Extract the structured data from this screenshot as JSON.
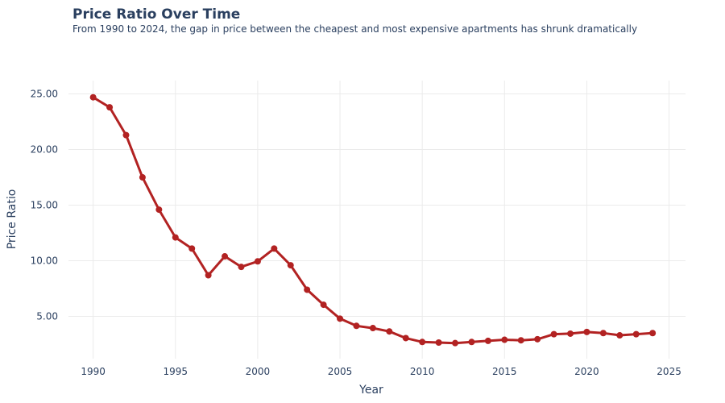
{
  "chart_data": {
    "type": "line",
    "title": "Price Ratio Over Time",
    "subtitle": "From 1990 to 2024, the gap in price between the cheapest and most expensive apartments has shrunk dramatically",
    "xlabel": "Year",
    "ylabel": "Price Ratio",
    "xlim": [
      1988.5,
      2026
    ],
    "ylim": [
      1.2,
      26.2
    ],
    "xticks": [
      1990,
      1995,
      2000,
      2005,
      2010,
      2015,
      2020,
      2025
    ],
    "yticks": [
      "5.00",
      "10.00",
      "15.00",
      "20.00",
      "25.00"
    ],
    "grid": true,
    "legend": "none",
    "series": [
      {
        "color": "#b22222",
        "x": [
          1990,
          1991,
          1992,
          1993,
          1994,
          1995,
          1996,
          1997,
          1998,
          1999,
          2000,
          2001,
          2002,
          2003,
          2004,
          2005,
          2006,
          2007,
          2008,
          2009,
          2010,
          2011,
          2012,
          2013,
          2014,
          2015,
          2016,
          2017,
          2018,
          2019,
          2020,
          2021,
          2022,
          2023,
          2024
        ],
        "y": [
          24.7,
          23.8,
          21.3,
          17.5,
          14.6,
          12.1,
          11.1,
          8.7,
          10.4,
          9.45,
          9.95,
          11.1,
          9.6,
          7.4,
          6.05,
          4.8,
          4.15,
          3.95,
          3.65,
          3.05,
          2.7,
          2.65,
          2.6,
          2.7,
          2.8,
          2.9,
          2.85,
          2.95,
          3.4,
          3.45,
          3.6,
          3.5,
          3.3,
          3.4,
          3.5
        ]
      }
    ]
  }
}
